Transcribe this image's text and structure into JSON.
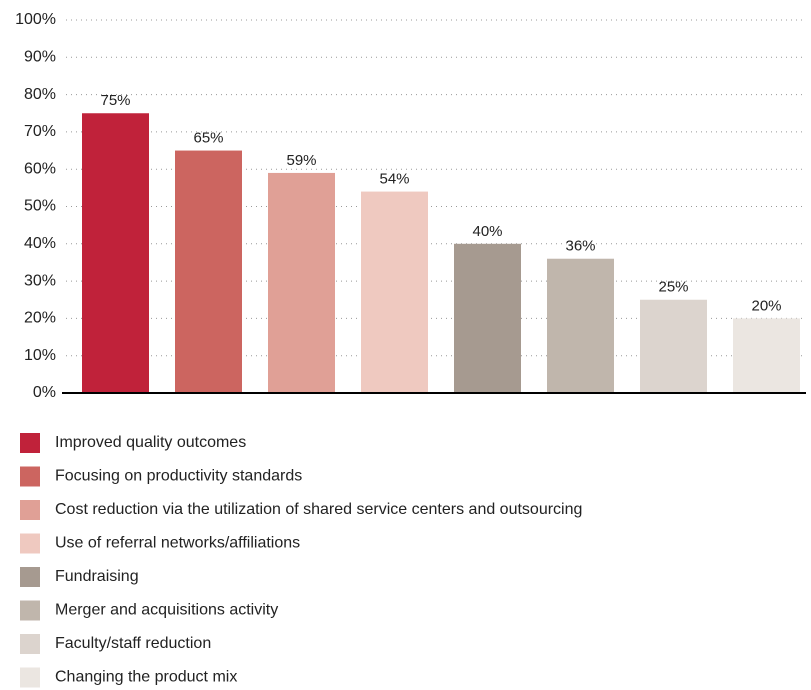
{
  "chart_data": {
    "type": "bar",
    "categories": [
      "Improved quality outcomes",
      "Focusing on productivity standards",
      "Cost reduction via the utilization of shared service centers and outsourcing",
      "Use of referral networks/affiliations",
      "Fundraising",
      "Merger and acquisitions activity",
      "Faculty/staff reduction",
      "Changing the product mix"
    ],
    "values": [
      75,
      65,
      59,
      54,
      40,
      36,
      25,
      20
    ],
    "value_labels": [
      "75%",
      "65%",
      "59%",
      "54%",
      "40%",
      "36%",
      "25%",
      "20%"
    ],
    "colors": [
      "#c0223a",
      "#cc6560",
      "#e0a096",
      "#efc9c0",
      "#a69a90",
      "#c0b6ac",
      "#dcd4ce",
      "#ebe6e1"
    ],
    "ylim": [
      0,
      100
    ],
    "yticks": [
      {
        "value": 0,
        "label": "0%"
      },
      {
        "value": 10,
        "label": "10%"
      },
      {
        "value": 20,
        "label": "20%"
      },
      {
        "value": 30,
        "label": "30%"
      },
      {
        "value": 40,
        "label": "40%"
      },
      {
        "value": 50,
        "label": "50%"
      },
      {
        "value": 60,
        "label": "60%"
      },
      {
        "value": 70,
        "label": "70%"
      },
      {
        "value": 80,
        "label": "80%"
      },
      {
        "value": 90,
        "label": "90%"
      },
      {
        "value": 100,
        "label": "100%"
      }
    ],
    "grid": true,
    "legend": "bottom"
  }
}
